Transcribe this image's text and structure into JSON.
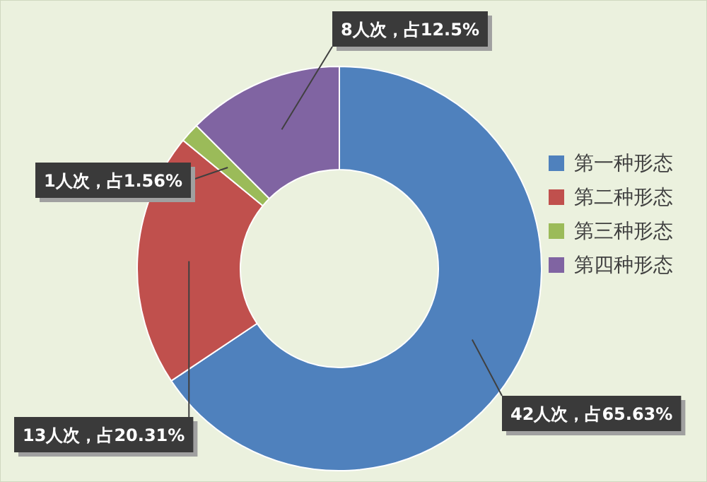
{
  "chart_data": {
    "type": "donut",
    "categories": [
      "第一种形态",
      "第二种形态",
      "第三种形态",
      "第四种形态"
    ],
    "values": [
      42,
      13,
      1,
      8
    ],
    "colors": [
      "#4f81bd",
      "#c0504d",
      "#9bbb59",
      "#8064a2"
    ],
    "value_labels": [
      "42人次，占65.63%",
      "13人次，占20.31%",
      "1人次，占1.56%",
      "8人次，占12.5%"
    ],
    "legend": "right"
  }
}
